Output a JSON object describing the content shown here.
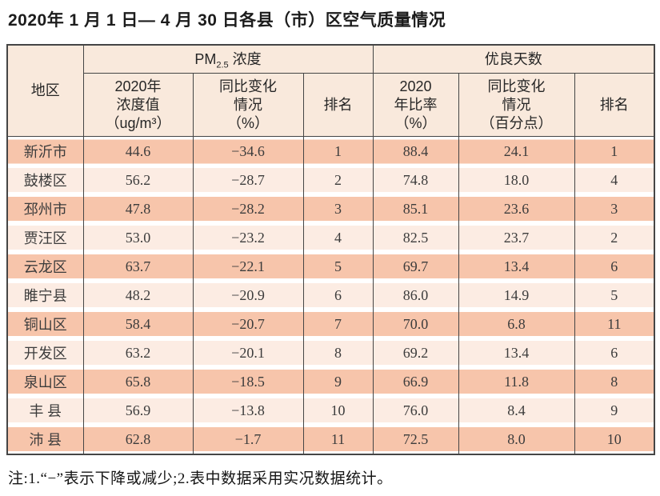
{
  "title": "2020年 1 月 1 日— 4 月 30 日各县（市）区空气质量情况",
  "table": {
    "header": {
      "region": "地区",
      "pm25_group": {
        "prefix": "PM",
        "sub": "2.5",
        "suffix": " 浓度"
      },
      "good_days_group": "优良天数",
      "pm25_value": "2020年\n浓度值\n（ug/m³）",
      "pm25_change": "同比变化\n情况\n（%）",
      "pm25_rank": "排名",
      "good_rate": "2020\n年比率\n（%）",
      "good_change": "同比变化\n情况\n（百分点）",
      "good_rank": "排名"
    },
    "rows": [
      [
        "新沂市",
        "44.6",
        "−34.6",
        "1",
        "88.4",
        "24.1",
        "1"
      ],
      [
        "鼓楼区",
        "56.2",
        "−28.7",
        "2",
        "74.8",
        "18.0",
        "4"
      ],
      [
        "邳州市",
        "47.8",
        "−28.2",
        "3",
        "85.1",
        "23.6",
        "3"
      ],
      [
        "贾汪区",
        "53.0",
        "−23.2",
        "4",
        "82.5",
        "23.7",
        "2"
      ],
      [
        "云龙区",
        "63.7",
        "−22.1",
        "5",
        "69.7",
        "13.4",
        "6"
      ],
      [
        "睢宁县",
        "48.2",
        "−20.9",
        "6",
        "86.0",
        "14.9",
        "5"
      ],
      [
        "铜山区",
        "58.4",
        "−20.7",
        "7",
        "70.0",
        "6.8",
        "11"
      ],
      [
        "开发区",
        "63.2",
        "−20.1",
        "8",
        "69.2",
        "13.4",
        "6"
      ],
      [
        "泉山区",
        "65.8",
        "−18.5",
        "9",
        "66.9",
        "11.8",
        "8"
      ],
      [
        "丰 县",
        "56.9",
        "−13.8",
        "10",
        "76.0",
        "8.4",
        "9"
      ],
      [
        "沛 县",
        "62.8",
        "−1.7",
        "11",
        "72.5",
        "8.0",
        "10"
      ]
    ]
  },
  "note": "注:1.“−”表示下降或减少;2.表中数据采用实况数据统计。",
  "colors": {
    "header_bg": "#f9e9dc",
    "row_odd_bg": "#f7c5ab",
    "row_even_bg": "#fcece3",
    "border": "#454545",
    "text": "#3c3c3c"
  }
}
